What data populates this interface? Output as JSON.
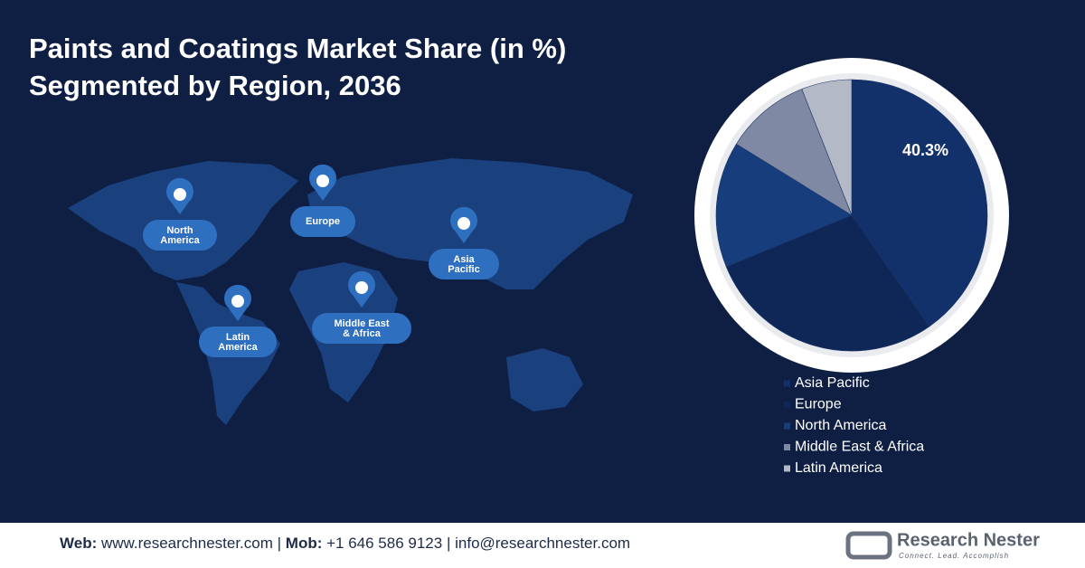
{
  "header": {
    "title_line1": "Paints and Coatings Market Share (in %)",
    "title_line2": "Segmented by Region, 2036"
  },
  "map": {
    "labels": [
      {
        "line1": "North",
        "line2": "America"
      },
      {
        "line1": "Europe"
      },
      {
        "line1": "Asia",
        "line2": "Pacific"
      },
      {
        "line1": "Latin",
        "line2": "America"
      },
      {
        "line1": "Middle East",
        "line2": "& Africa"
      }
    ]
  },
  "chart_data": {
    "type": "pie",
    "categories": [
      "Asia Pacific",
      "Europe",
      "North America",
      "Middle East & Africa",
      "Latin America"
    ],
    "values": [
      40.3,
      28.5,
      15,
      10.2,
      6
    ],
    "value_labels": [
      "40.3%",
      null,
      null,
      null,
      null
    ],
    "colors": [
      "#12306a",
      "#0e2757",
      "#173d7c",
      "#7f89a3",
      "#b4b9c6"
    ],
    "legend": "bottom"
  },
  "footer": {
    "web_label": "Web:",
    "web": "www.researchnester.com",
    "sep1": "|",
    "mob_label": "Mob:",
    "mob": "+1 646 586 9123",
    "sep2": "|",
    "email": "info@researchnester.com",
    "logo_name": "Research Nester",
    "logo_tagline": "Connect. Lead. Accomplish"
  }
}
